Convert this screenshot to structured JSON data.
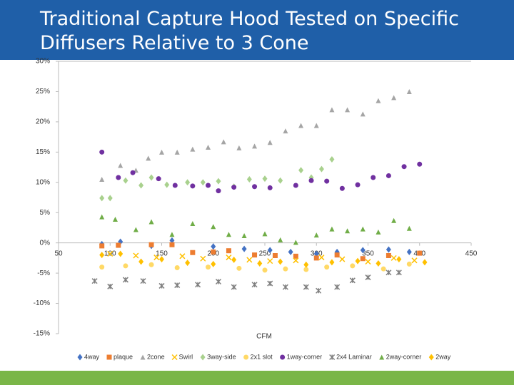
{
  "chart_data": {
    "type": "scatter",
    "title": "Traditional Capture Hood Tested on Specific Diffusers Relative to 3 Cone",
    "x_label": "CFM",
    "xlim": [
      50,
      450
    ],
    "xticks": [
      50,
      100,
      150,
      200,
      250,
      300,
      350,
      400,
      450
    ],
    "ylim": [
      -15,
      30
    ],
    "yticks": [
      {
        "value": -15,
        "label": "-15%"
      },
      {
        "value": -10,
        "label": "-10%"
      },
      {
        "value": -5,
        "label": "-5%"
      },
      {
        "value": 0,
        "label": "0%"
      },
      {
        "value": 5,
        "label": "5%"
      },
      {
        "value": 10,
        "label": "10%"
      },
      {
        "value": 15,
        "label": "15%"
      },
      {
        "value": 20,
        "label": "20%"
      },
      {
        "value": 25,
        "label": "25%"
      },
      {
        "value": 30,
        "label": "30%"
      }
    ],
    "legend": "bottom",
    "series": [
      {
        "name": "4way",
        "color": "#4472c4",
        "marker": "diamond",
        "x": [
          92,
          110,
          140,
          160,
          200,
          230,
          255,
          275,
          300,
          320,
          345,
          370,
          390
        ],
        "values": [
          -0.2,
          0.2,
          -0.5,
          0.4,
          -0.6,
          -1,
          -1.2,
          -1.5,
          -1.8,
          -1.5,
          -1.2,
          -1.1,
          -1.5
        ]
      },
      {
        "name": "plaque",
        "color": "#ed7d31",
        "marker": "square",
        "x": [
          92,
          108,
          140,
          160,
          180,
          200,
          215,
          240,
          260,
          280,
          300,
          320,
          345,
          370,
          400
        ],
        "values": [
          -0.5,
          -0.4,
          -0.3,
          -0.3,
          -1.6,
          -1.5,
          -1.3,
          -2,
          -2.1,
          -2.2,
          -2.5,
          -2,
          -2.6,
          -2.1,
          -1.7
        ]
      },
      {
        "name": "2cone",
        "color": "#a5a5a5",
        "marker": "triangle",
        "x": [
          92,
          110,
          125,
          137,
          150,
          165,
          180,
          195,
          210,
          225,
          240,
          255,
          270,
          285,
          300,
          315,
          330,
          345,
          360,
          375,
          390
        ],
        "values": [
          10.5,
          12.8,
          12,
          14,
          15,
          15,
          15.5,
          15.8,
          16.7,
          15.7,
          16,
          16.6,
          18.5,
          19.4,
          19.4,
          22,
          22,
          21.3,
          23.5,
          24,
          25
        ]
      },
      {
        "name": "Swirl",
        "color": "#ffc000",
        "marker": "x",
        "x": [
          100,
          125,
          145,
          170,
          190,
          215,
          235,
          255,
          280,
          305,
          325,
          350,
          375,
          395
        ],
        "values": [
          -1.8,
          -2.1,
          -2.4,
          -2.2,
          -2.6,
          -2.4,
          -2.8,
          -3,
          -2.9,
          -2.4,
          -2.7,
          -3.1,
          -2.5,
          -2.9
        ]
      },
      {
        "name": "3way-side",
        "color": "#a9d18e",
        "marker": "diamond",
        "x": [
          92,
          100,
          115,
          130,
          140,
          155,
          175,
          190,
          205,
          220,
          235,
          250,
          265,
          285,
          295,
          305,
          315
        ],
        "values": [
          7.4,
          7.4,
          10.3,
          9.5,
          10.8,
          9.6,
          10,
          10,
          10.2,
          9.3,
          10.5,
          10.6,
          10.3,
          12,
          10.8,
          12.2,
          13.8
        ]
      },
      {
        "name": "2x1 slot",
        "color": "#ffd966",
        "marker": "circle",
        "x": [
          92,
          115,
          140,
          165,
          195,
          225,
          250,
          270,
          290,
          310,
          335,
          365,
          390
        ],
        "values": [
          -4,
          -3.8,
          -3.6,
          -4.1,
          -4,
          -4.2,
          -4.5,
          -4.3,
          -4.4,
          -4,
          -3.8,
          -4.3,
          -3.5
        ]
      },
      {
        "name": "1way-corner",
        "color": "#7030a0",
        "marker": "circle",
        "x": [
          92,
          108,
          122,
          147,
          163,
          180,
          195,
          205,
          220,
          240,
          255,
          280,
          295,
          310,
          325,
          340,
          355,
          370,
          385,
          400
        ],
        "values": [
          15,
          10.8,
          11.6,
          10.6,
          9.5,
          9.4,
          9.5,
          8.6,
          9.2,
          9.3,
          9.1,
          9.5,
          10.3,
          10.2,
          9,
          9.6,
          10.8,
          11.1,
          12.6,
          13
        ]
      },
      {
        "name": "2x4 Laminar",
        "color": "#7f7f7f",
        "marker": "star",
        "x": [
          85,
          100,
          115,
          132,
          150,
          165,
          185,
          205,
          220,
          240,
          255,
          270,
          290,
          302,
          320,
          335,
          350,
          370,
          380
        ],
        "values": [
          -6.3,
          -7.2,
          -6.1,
          -6.3,
          -7.1,
          -7,
          -6.9,
          -6.4,
          -7.3,
          -6.9,
          -6.7,
          -7.3,
          -7.3,
          -7.9,
          -7.3,
          -6.2,
          -5.7,
          -4.9,
          -4.9
        ]
      },
      {
        "name": "2way-corner",
        "color": "#70ad47",
        "marker": "triangle",
        "x": [
          92,
          105,
          125,
          140,
          160,
          180,
          200,
          215,
          230,
          250,
          265,
          280,
          300,
          315,
          330,
          345,
          360,
          375,
          390
        ],
        "values": [
          4.3,
          3.9,
          2.2,
          3.5,
          1.4,
          3.2,
          2.7,
          1.4,
          1.2,
          1.5,
          0.5,
          0.1,
          1.3,
          2.3,
          2,
          2.3,
          1.8,
          3.7,
          2.4
        ]
      },
      {
        "name": "2way",
        "color": "#ffc000",
        "marker": "diamond",
        "x": [
          92,
          110,
          130,
          150,
          175,
          200,
          220,
          245,
          265,
          290,
          315,
          340,
          360,
          380,
          405
        ],
        "values": [
          -2,
          -1.8,
          -3.1,
          -2.7,
          -3.3,
          -3.5,
          -2.8,
          -3.4,
          -3.1,
          -3.6,
          -3.2,
          -3,
          -3.4,
          -2.7,
          -3.2
        ]
      }
    ]
  }
}
